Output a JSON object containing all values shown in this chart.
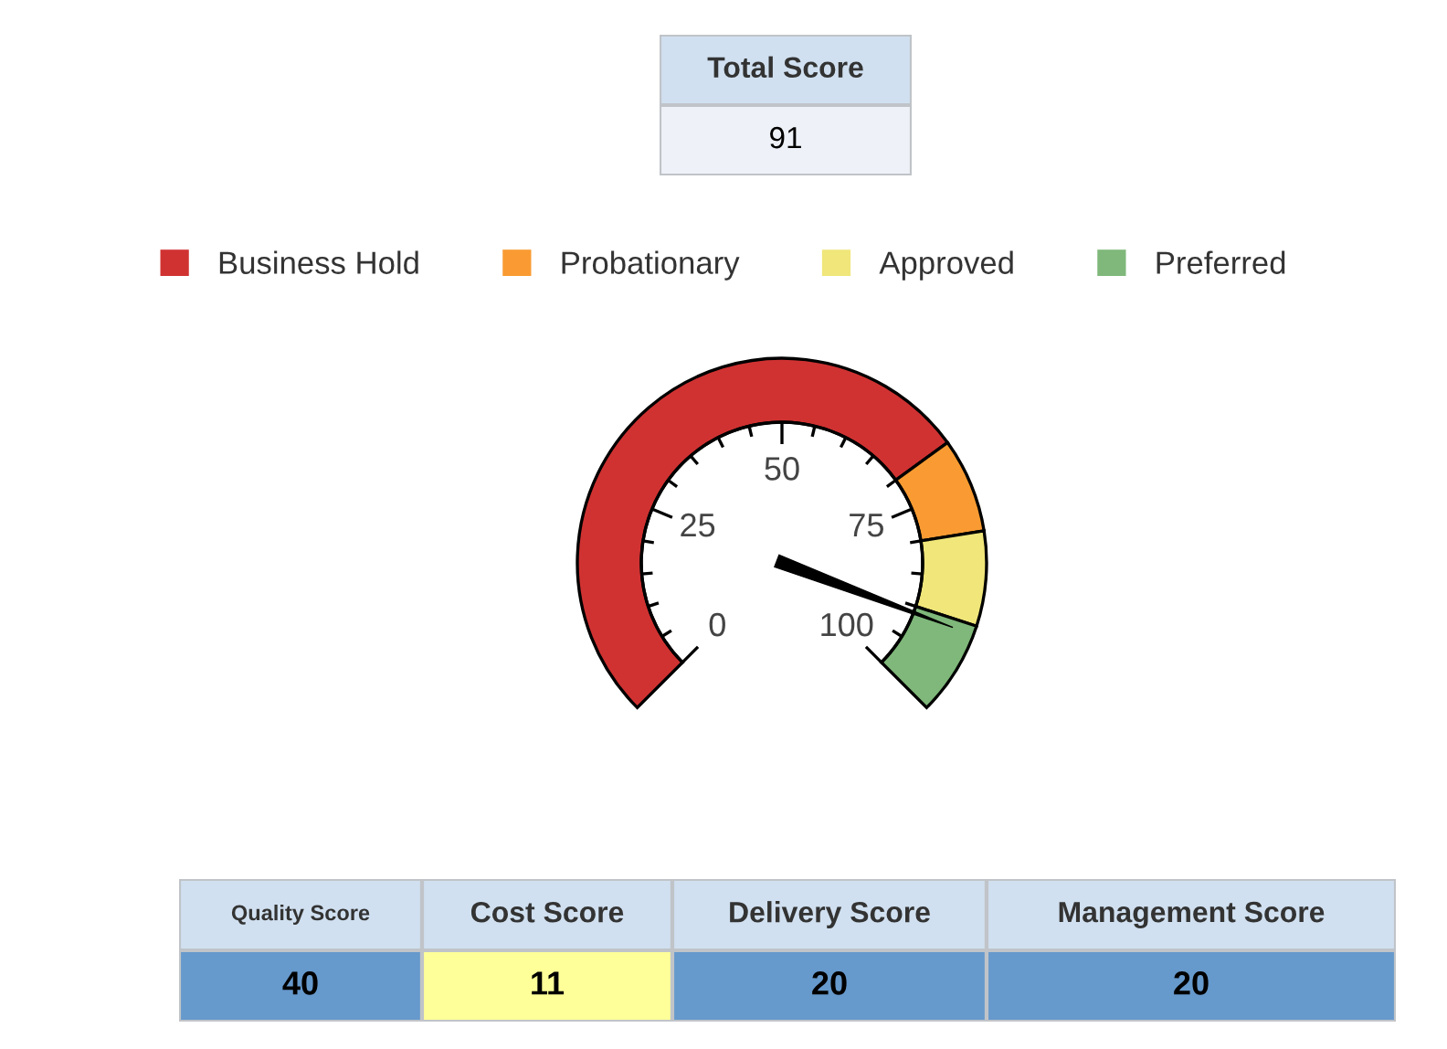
{
  "chart_data": [
    {
      "type": "other",
      "categories": [
        "Total Score"
      ],
      "values": [
        91
      ],
      "data_labels": true
    },
    {
      "type": "donut",
      "categories": [
        "Business Hold",
        "Probationary",
        "Approved",
        "Preferred"
      ],
      "values": [
        70,
        10,
        10,
        10
      ],
      "colors": [
        "#d03232",
        "#f99b32",
        "#f0e67a",
        "#7fb87a"
      ],
      "annotations": [
        "0",
        "25",
        "50",
        "75",
        "100"
      ],
      "needle": "Preferred",
      "legend": "top"
    },
    {
      "type": "other",
      "categories": [
        "Quality Score",
        "Cost Score",
        "Delivery Score",
        "Management Score"
      ],
      "values": [
        40,
        11,
        20,
        20
      ],
      "colors": [
        "#6699cc",
        "#ffff99",
        "#6699cc",
        "#6699cc"
      ],
      "data_labels": true
    }
  ]
}
